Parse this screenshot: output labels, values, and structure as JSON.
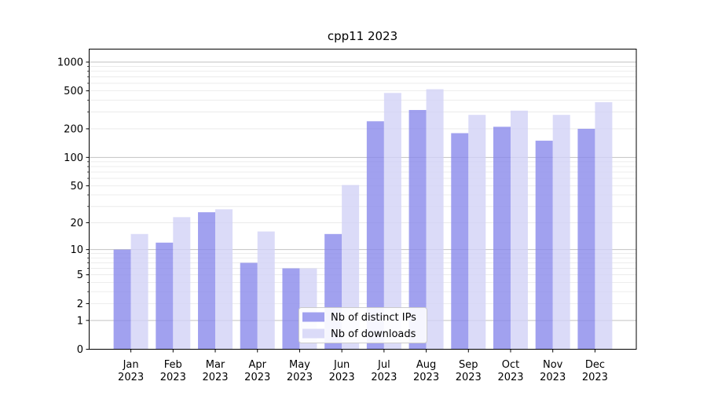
{
  "title": "cpp11 2023",
  "chart_data": {
    "type": "bar",
    "title": "cpp11 2023",
    "scale": "log1p",
    "grid": true,
    "legend_position": "lower center",
    "months": [
      "Jan",
      "Feb",
      "Mar",
      "Apr",
      "May",
      "Jun",
      "Jul",
      "Aug",
      "Sep",
      "Oct",
      "Nov",
      "Dec"
    ],
    "year": "2023",
    "categories": [
      "Jan 2023",
      "Feb 2023",
      "Mar 2023",
      "Apr 2023",
      "May 2023",
      "Jun 2023",
      "Jul 2023",
      "Aug 2023",
      "Sep 2023",
      "Oct 2023",
      "Nov 2023",
      "Dec 2023"
    ],
    "series": [
      {
        "name": "Nb of distinct IPs",
        "color": "#8a8aeb",
        "values": [
          10,
          12,
          26,
          7,
          6,
          15,
          240,
          315,
          180,
          210,
          150,
          200
        ]
      },
      {
        "name": "Nb of downloads",
        "color": "#d2d2f6",
        "values": [
          15,
          23,
          28,
          16,
          6,
          51,
          475,
          520,
          280,
          310,
          280,
          380
        ]
      }
    ],
    "yticks": [
      0,
      1,
      2,
      5,
      10,
      20,
      50,
      100,
      200,
      500,
      1000
    ],
    "ylim": [
      0,
      1380
    ],
    "xlabel": "",
    "ylabel": "",
    "colors": {
      "bar_ips": "#8a8aeb",
      "bar_downloads": "#d2d2f6",
      "grid_major": "#c2c2c2",
      "grid_minor": "#e7e7e7",
      "axis": "#000000",
      "legend_border": "#cccccc",
      "background": "#ffffff"
    }
  }
}
